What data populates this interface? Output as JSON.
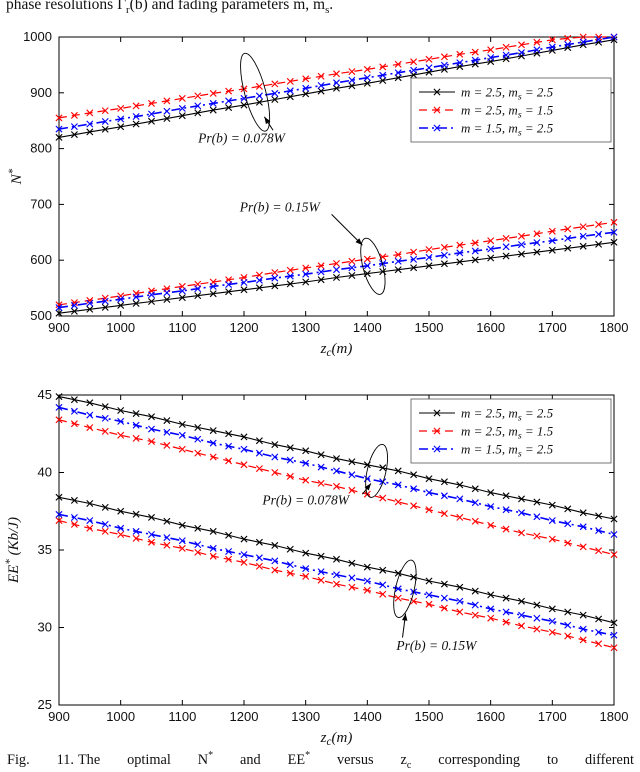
{
  "page": {
    "top_text": "phase resolutions Γ_r(b) and fading parameters m, m_s.",
    "caption_prefix": "Fig. 11.",
    "caption_text": "The optimal N^* and EE^* versus z_c corresponding to different"
  },
  "styles": {
    "series": [
      {
        "label": "m = 2.5, m_s = 2.5",
        "color": "#000000",
        "dash": "solid",
        "width": 1.1
      },
      {
        "label": "m = 2.5, m_s = 1.5",
        "color": "#ff0000",
        "dash": "dashed",
        "width": 1.2
      },
      {
        "label": "m = 1.5, m_s = 2.5",
        "color": "#0000ff",
        "dash": "dashdot",
        "width": 1.6
      }
    ]
  },
  "chart_data": [
    {
      "type": "line",
      "title": "",
      "xlabel": "z_c(m)",
      "ylabel": "N^*",
      "xlim": [
        900,
        1800
      ],
      "ylim": [
        500,
        1000
      ],
      "xticks": [
        900,
        1000,
        1100,
        1200,
        1300,
        1400,
        1500,
        1600,
        1700,
        1800
      ],
      "yticks": [
        500,
        600,
        700,
        800,
        900,
        1000
      ],
      "grid": false,
      "legend_position": "upper-right-inset",
      "legend": [
        "m = 2.5, m_s = 2.5",
        "m = 2.5, m_s = 1.5",
        "m = 1.5, m_s = 2.5"
      ],
      "x": [
        900,
        950,
        1000,
        1050,
        1100,
        1150,
        1200,
        1250,
        1300,
        1350,
        1400,
        1450,
        1500,
        1550,
        1600,
        1650,
        1700,
        1750,
        1800
      ],
      "series": [
        {
          "name": "Pr(b)=0.078W, m=2.5, m_s=2.5",
          "group": "Pr(b) = 0.078W",
          "style": 0,
          "values": [
            820,
            830,
            839,
            849,
            859,
            869,
            878,
            888,
            898,
            908,
            917,
            927,
            937,
            947,
            956,
            966,
            976,
            986,
            995
          ]
        },
        {
          "name": "Pr(b)=0.078W, m=2.5, m_s=1.5",
          "group": "Pr(b) = 0.078W",
          "style": 1,
          "values": [
            855,
            864,
            872,
            881,
            890,
            899,
            907,
            916,
            925,
            934,
            942,
            951,
            960,
            969,
            977,
            986,
            995,
            1000,
            1000
          ]
        },
        {
          "name": "Pr(b)=0.078W, m=1.5, m_s=2.5",
          "group": "Pr(b) = 0.078W",
          "style": 2,
          "values": [
            835,
            844,
            853,
            862,
            872,
            881,
            890,
            899,
            908,
            918,
            927,
            936,
            945,
            954,
            963,
            972,
            982,
            991,
            1000
          ]
        },
        {
          "name": "Pr(b)=0.15W, m=2.5, m_s=2.5",
          "group": "Pr(b) = 0.15W",
          "style": 0,
          "values": [
            505,
            512,
            519,
            526,
            533,
            540,
            547,
            554,
            561,
            569,
            576,
            583,
            590,
            597,
            604,
            611,
            618,
            625,
            632
          ]
        },
        {
          "name": "Pr(b)=0.15W, m=2.5, m_s=1.5",
          "group": "Pr(b) = 0.15W",
          "style": 1,
          "values": [
            520,
            528,
            536,
            545,
            553,
            561,
            569,
            578,
            586,
            594,
            602,
            610,
            619,
            627,
            635,
            643,
            652,
            660,
            668
          ]
        },
        {
          "name": "Pr(b)=0.15W, m=1.5, m_s=2.5",
          "group": "Pr(b) = 0.15W",
          "style": 2,
          "values": [
            515,
            523,
            530,
            538,
            545,
            553,
            560,
            568,
            575,
            583,
            590,
            598,
            605,
            613,
            620,
            628,
            635,
            643,
            650
          ]
        }
      ],
      "annotations": [
        {
          "text": "Pr(b) = 0.078W",
          "text_xy": [
            1196,
            818
          ],
          "arrow": [
            [
              1247,
              833
            ],
            [
              1233,
              857
            ]
          ],
          "ellipse": {
            "cx": 1218,
            "cy": 901,
            "rx": 17,
            "ry": 72,
            "rot": -15
          }
        },
        {
          "text": "Pr(b) = 0.15W",
          "text_xy": [
            1258,
            694
          ],
          "arrow": [
            [
              1342,
              682
            ],
            [
              1392,
              627
            ]
          ],
          "ellipse": {
            "cx": 1409,
            "cy": 589,
            "rx": 16,
            "ry": 52,
            "rot": -15
          }
        }
      ]
    },
    {
      "type": "line",
      "title": "",
      "xlabel": "z_c(m)",
      "ylabel": "EE^* (Kb/J)",
      "xlim": [
        900,
        1800
      ],
      "ylim": [
        25,
        45
      ],
      "xticks": [
        900,
        1000,
        1100,
        1200,
        1300,
        1400,
        1500,
        1600,
        1700,
        1800
      ],
      "yticks": [
        25,
        30,
        35,
        40,
        45
      ],
      "grid": false,
      "legend_position": "upper-right",
      "legend": [
        "m = 2.5, m_s = 2.5",
        "m = 2.5, m_s = 1.5",
        "m = 1.5, m_s = 2.5"
      ],
      "x": [
        900,
        950,
        1000,
        1050,
        1100,
        1150,
        1200,
        1250,
        1300,
        1350,
        1400,
        1450,
        1500,
        1550,
        1600,
        1650,
        1700,
        1750,
        1800
      ],
      "series": [
        {
          "name": "Pr(b)=0.078W, m=2.5, m_s=2.5",
          "group": "Pr(b) = 0.078W",
          "style": 0,
          "values": [
            44.9,
            44.5,
            44.0,
            43.6,
            43.1,
            42.7,
            42.3,
            41.8,
            41.4,
            40.9,
            40.5,
            40.1,
            39.6,
            39.2,
            38.7,
            38.3,
            37.9,
            37.4,
            37.0
          ]
        },
        {
          "name": "Pr(b)=0.078W, m=2.5, m_s=1.5",
          "group": "Pr(b) = 0.078W",
          "style": 1,
          "values": [
            43.4,
            42.9,
            42.4,
            42.0,
            41.5,
            41.0,
            40.5,
            40.0,
            39.5,
            39.1,
            38.6,
            38.1,
            37.6,
            37.1,
            36.6,
            36.1,
            35.7,
            35.2,
            34.7
          ]
        },
        {
          "name": "Pr(b)=0.078W, m=1.5, m_s=2.5",
          "group": "Pr(b) = 0.078W",
          "style": 2,
          "values": [
            44.2,
            43.7,
            43.3,
            42.8,
            42.4,
            41.9,
            41.5,
            41.0,
            40.6,
            40.1,
            39.6,
            39.2,
            38.7,
            38.3,
            37.8,
            37.4,
            36.9,
            36.5,
            36.0
          ]
        },
        {
          "name": "Pr(b)=0.15W, m=2.5, m_s=2.5",
          "group": "Pr(b) = 0.15W",
          "style": 0,
          "values": [
            38.4,
            38.0,
            37.5,
            37.1,
            36.6,
            36.2,
            35.7,
            35.3,
            34.8,
            34.4,
            33.9,
            33.5,
            33.0,
            32.6,
            32.1,
            31.7,
            31.2,
            30.8,
            30.3
          ]
        },
        {
          "name": "Pr(b)=0.15W, m=2.5, m_s=1.5",
          "group": "Pr(b) = 0.15W",
          "style": 1,
          "values": [
            36.9,
            36.4,
            36.0,
            35.5,
            35.1,
            34.6,
            34.2,
            33.7,
            33.3,
            32.8,
            32.4,
            31.9,
            31.5,
            31.0,
            30.6,
            30.1,
            29.7,
            29.2,
            28.7
          ]
        },
        {
          "name": "Pr(b)=0.15W, m=1.5, m_s=2.5",
          "group": "Pr(b) = 0.15W",
          "style": 2,
          "values": [
            37.3,
            36.9,
            36.4,
            36.0,
            35.6,
            35.1,
            34.7,
            34.3,
            33.8,
            33.4,
            33.0,
            32.5,
            32.1,
            31.7,
            31.2,
            30.8,
            30.4,
            29.9,
            29.5
          ]
        }
      ],
      "annotations": [
        {
          "text": "Pr(b) = 0.078W",
          "text_xy": [
            1300,
            38.2
          ],
          "arrow": [
            [
              1392,
              38.6
            ],
            [
              1406,
              39.3
            ]
          ],
          "ellipse": {
            "cx": 1415,
            "cy": 40.1,
            "rx": 15,
            "ry": 1.75,
            "rot": 13
          }
        },
        {
          "text": "Pr(b) = 0.15W",
          "text_xy": [
            1512,
            28.8
          ],
          "arrow": [
            [
              1457,
              29.35
            ],
            [
              1462,
              30.9
            ]
          ],
          "ellipse": {
            "cx": 1461,
            "cy": 32.5,
            "rx": 15,
            "ry": 1.9,
            "rot": 13
          }
        }
      ]
    }
  ]
}
